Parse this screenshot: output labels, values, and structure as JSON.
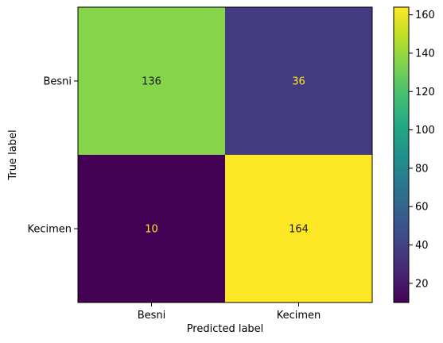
{
  "chart_data": {
    "type": "heatmap",
    "title": "",
    "xlabel": "Predicted label",
    "ylabel": "True label",
    "x_categories": [
      "Besni",
      "Kecimen"
    ],
    "y_categories": [
      "Besni",
      "Kecimen"
    ],
    "values": [
      [
        136,
        36
      ],
      [
        10,
        164
      ]
    ],
    "colormap": "viridis",
    "colorbar": {
      "vmin": 10,
      "vmax": 164,
      "ticks": [
        20,
        40,
        60,
        80,
        100,
        120,
        140,
        160
      ],
      "tick_labels": [
        "20",
        "40",
        "60",
        "80",
        "100",
        "120",
        "140",
        "160"
      ]
    },
    "grid": false,
    "colors": {
      "low_text": "#fde725",
      "high_text": "#1a1a1a"
    }
  }
}
